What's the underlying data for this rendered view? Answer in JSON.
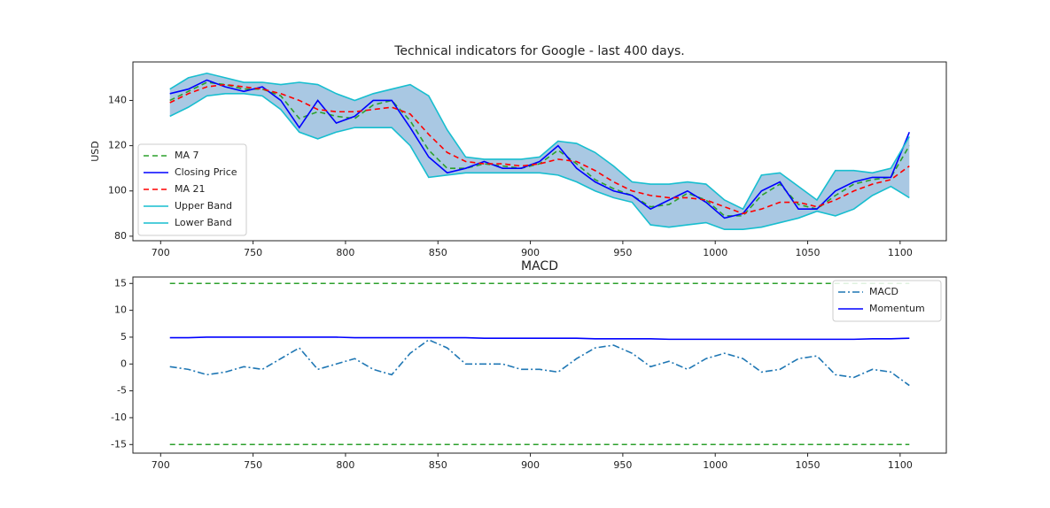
{
  "chart_data": [
    {
      "type": "line",
      "title": "Technical indicators for Google - last 400 days.",
      "y_label": "USD",
      "x": [
        705,
        715,
        725,
        735,
        745,
        755,
        765,
        775,
        785,
        795,
        805,
        815,
        825,
        835,
        845,
        855,
        865,
        875,
        885,
        895,
        905,
        915,
        925,
        935,
        945,
        955,
        965,
        975,
        985,
        995,
        1005,
        1015,
        1025,
        1035,
        1045,
        1055,
        1065,
        1075,
        1085,
        1095,
        1105
      ],
      "xlim": [
        685,
        1125
      ],
      "xticks": [
        700,
        750,
        800,
        850,
        900,
        950,
        1000,
        1050,
        1100
      ],
      "ylim": [
        78,
        157
      ],
      "yticks": [
        80,
        100,
        120,
        140
      ],
      "legend": "lower left",
      "fill_between": {
        "series": [
          3,
          4
        ],
        "color": "#a9c8e3"
      },
      "series": [
        {
          "name": "MA 7",
          "color": "#2ca02c",
          "linestyle": "dashed",
          "values": [
            140,
            144,
            148,
            147,
            145,
            145,
            142,
            132,
            135,
            133,
            132,
            138,
            140,
            131,
            118,
            110,
            110,
            112,
            111,
            110,
            112,
            118,
            112,
            105,
            101,
            98,
            93,
            94,
            99,
            96,
            89,
            89,
            98,
            103,
            94,
            92,
            98,
            103,
            105,
            106,
            120
          ]
        },
        {
          "name": "Closing Price",
          "color": "#0000ff",
          "linestyle": "solid",
          "values": [
            143,
            145,
            149,
            146,
            144,
            146,
            140,
            128,
            140,
            130,
            133,
            140,
            140,
            128,
            115,
            108,
            110,
            113,
            110,
            110,
            113,
            120,
            110,
            104,
            100,
            98,
            92,
            96,
            100,
            95,
            88,
            90,
            100,
            104,
            92,
            92,
            100,
            104,
            106,
            106,
            126
          ]
        },
        {
          "name": "MA 21",
          "color": "#ff0000",
          "linestyle": "dashed",
          "values": [
            139,
            143,
            146,
            147,
            146,
            145,
            143,
            140,
            136,
            135,
            135,
            136,
            137,
            134,
            125,
            117,
            113,
            112,
            112,
            111,
            112,
            114,
            113,
            109,
            104,
            100,
            98,
            97,
            97,
            96,
            93,
            90,
            92,
            95,
            95,
            93,
            96,
            100,
            103,
            105,
            111
          ]
        },
        {
          "name": "Upper Band",
          "color": "#17becf",
          "linestyle": "solid",
          "values": [
            145,
            150,
            152,
            150,
            148,
            148,
            147,
            148,
            147,
            143,
            140,
            143,
            145,
            147,
            142,
            127,
            115,
            114,
            114,
            114,
            115,
            122,
            121,
            117,
            111,
            104,
            103,
            103,
            104,
            103,
            96,
            92,
            107,
            108,
            102,
            96,
            109,
            109,
            108,
            110,
            124
          ]
        },
        {
          "name": "Lower Band",
          "color": "#17becf",
          "linestyle": "solid",
          "values": [
            133,
            137,
            142,
            143,
            143,
            142,
            136,
            126,
            123,
            126,
            128,
            128,
            128,
            120,
            106,
            107,
            108,
            108,
            108,
            108,
            108,
            107,
            104,
            100,
            97,
            95,
            85,
            84,
            85,
            86,
            83,
            83,
            84,
            86,
            88,
            91,
            89,
            92,
            98,
            102,
            97
          ]
        }
      ]
    },
    {
      "type": "line",
      "title": "MACD",
      "x": [
        705,
        715,
        725,
        735,
        745,
        755,
        765,
        775,
        785,
        795,
        805,
        815,
        825,
        835,
        845,
        855,
        865,
        875,
        885,
        895,
        905,
        915,
        925,
        935,
        945,
        955,
        965,
        975,
        985,
        995,
        1005,
        1015,
        1025,
        1035,
        1045,
        1055,
        1065,
        1075,
        1085,
        1095,
        1105
      ],
      "xlim": [
        685,
        1125
      ],
      "xticks": [
        700,
        750,
        800,
        850,
        900,
        950,
        1000,
        1050,
        1100
      ],
      "ylim": [
        -16.6,
        16.2
      ],
      "yticks": [
        -15,
        -10,
        -5,
        0,
        5,
        10,
        15
      ],
      "legend": "upper right",
      "hlines": [
        {
          "value": 15,
          "color": "#2ca02c",
          "linestyle": "dashed"
        },
        {
          "value": -15,
          "color": "#2ca02c",
          "linestyle": "dashed"
        }
      ],
      "series": [
        {
          "name": "MACD",
          "color": "#1f77b4",
          "linestyle": "dashdot",
          "values": [
            -0.5,
            -1,
            -2,
            -1.5,
            -0.5,
            -1,
            1,
            3,
            -1,
            0,
            1,
            -1,
            -2,
            2,
            4.5,
            3,
            0,
            0,
            0,
            -1,
            -1,
            -1.5,
            1,
            3,
            3.5,
            2,
            -0.5,
            0.5,
            -1,
            1,
            2,
            1,
            -1.5,
            -1,
            1,
            1.5,
            -2,
            -2.5,
            -1,
            -1.5,
            -4
          ]
        },
        {
          "name": "Momentum",
          "color": "#0000ff",
          "linestyle": "solid",
          "values": [
            4.9,
            4.9,
            5,
            5,
            5,
            5,
            5,
            5,
            5,
            5,
            4.9,
            4.9,
            4.9,
            4.9,
            4.9,
            4.9,
            4.9,
            4.8,
            4.8,
            4.8,
            4.8,
            4.8,
            4.8,
            4.7,
            4.7,
            4.7,
            4.7,
            4.6,
            4.6,
            4.6,
            4.6,
            4.6,
            4.6,
            4.6,
            4.6,
            4.6,
            4.6,
            4.6,
            4.7,
            4.7,
            4.8
          ]
        }
      ]
    }
  ]
}
